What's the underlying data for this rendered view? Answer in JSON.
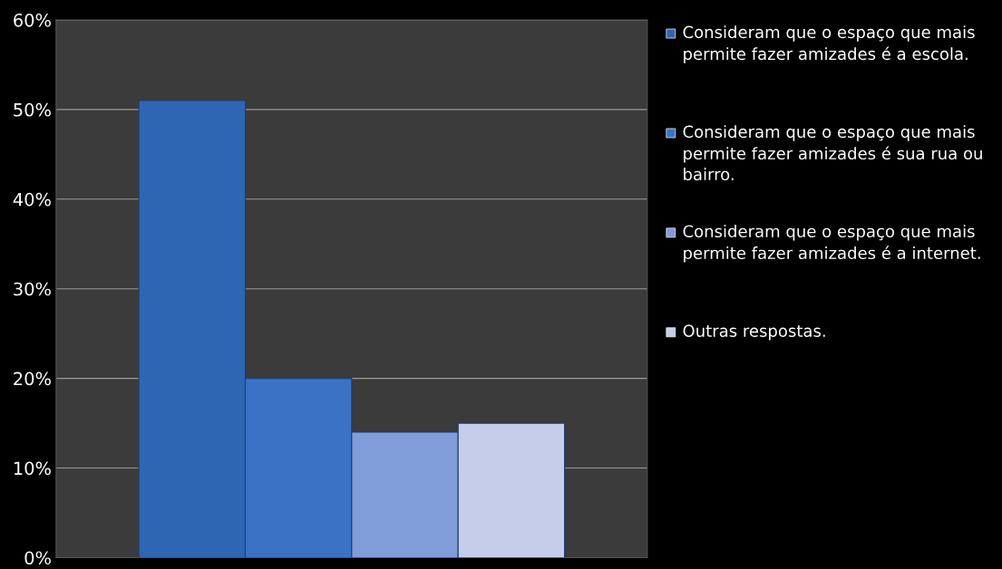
{
  "chart_data": {
    "type": "bar",
    "categories": [
      null
    ],
    "series": [
      {
        "name": "Consideram que o espaço que mais permite fazer amizades é a escola.",
        "color": "#2f66b3",
        "values": [
          51
        ]
      },
      {
        "name": "Consideram que o espaço que mais permite fazer amizades é sua rua ou bairro.",
        "color": "#3b72c6",
        "values": [
          20
        ]
      },
      {
        "name": "Consideram que o espaço que mais permite fazer amizades é a internet.",
        "color": "#809cd9",
        "values": [
          14
        ]
      },
      {
        "name": "Outras respostas.",
        "color": "#c6cdea",
        "values": [
          15
        ]
      }
    ],
    "ylim": [
      0,
      60
    ],
    "yticks": [
      {
        "value": 0,
        "label": "0%"
      },
      {
        "value": 10,
        "label": "10%"
      },
      {
        "value": 20,
        "label": "20%"
      },
      {
        "value": 30,
        "label": "30%"
      },
      {
        "value": 40,
        "label": "40%"
      },
      {
        "value": 50,
        "label": "50%"
      },
      {
        "value": 60,
        "label": "60%"
      }
    ],
    "grid": "y",
    "legend": "right"
  }
}
